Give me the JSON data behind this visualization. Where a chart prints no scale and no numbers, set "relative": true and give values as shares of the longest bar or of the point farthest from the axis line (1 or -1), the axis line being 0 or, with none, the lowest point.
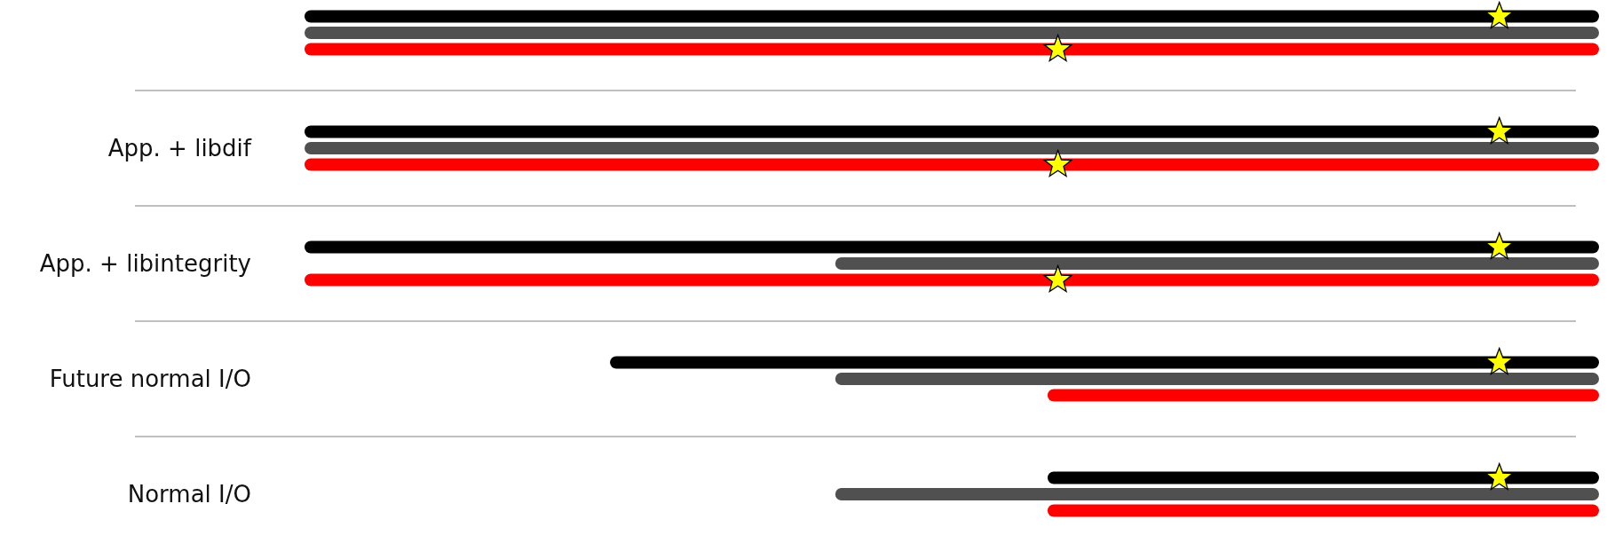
{
  "chart_data": {
    "type": "bar",
    "orientation": "horizontal",
    "relative": true,
    "categories": [
      null,
      "App. + libdif",
      "App. + libintegrity",
      "Future normal I/O",
      "Normal I/O"
    ],
    "series": [
      {
        "color": "#000000",
        "values": [
          -1,
          -1,
          -1,
          -0.764,
          -0.426
        ]
      },
      {
        "color": "#505050",
        "values": [
          -1,
          -1,
          -0.59,
          -0.59,
          -0.59
        ]
      },
      {
        "color": "#ff0000",
        "values": [
          -1,
          -1,
          -1,
          -0.426,
          -0.426
        ]
      }
    ]
  }
}
